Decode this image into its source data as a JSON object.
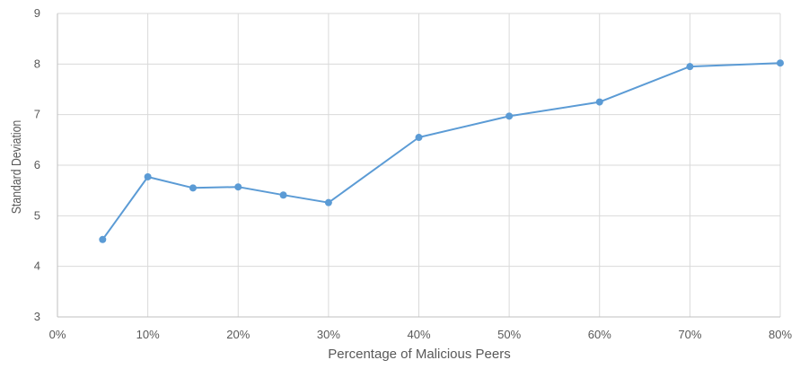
{
  "chart_data": {
    "type": "line",
    "xlabel": "Percentage of Malicious Peers",
    "ylabel": "Standard Deviation",
    "xlim": [
      0,
      80
    ],
    "ylim": [
      3,
      9
    ],
    "x_ticks": [
      0,
      10,
      20,
      30,
      40,
      50,
      60,
      70,
      80
    ],
    "x_tick_labels": [
      "0%",
      "10%",
      "20%",
      "30%",
      "40%",
      "50%",
      "60%",
      "70%",
      "80%"
    ],
    "y_ticks": [
      3,
      4,
      5,
      6,
      7,
      8,
      9
    ],
    "y_tick_labels": [
      "3",
      "4",
      "5",
      "6",
      "7",
      "8",
      "9"
    ],
    "grid": true,
    "series": [
      {
        "color": "#5b9bd5",
        "x": [
          5,
          10,
          15,
          20,
          25,
          30,
          40,
          50,
          60,
          70,
          80
        ],
        "y": [
          4.53,
          5.77,
          5.55,
          5.57,
          5.41,
          5.26,
          6.55,
          6.97,
          7.25,
          7.95,
          8.02
        ]
      }
    ]
  }
}
